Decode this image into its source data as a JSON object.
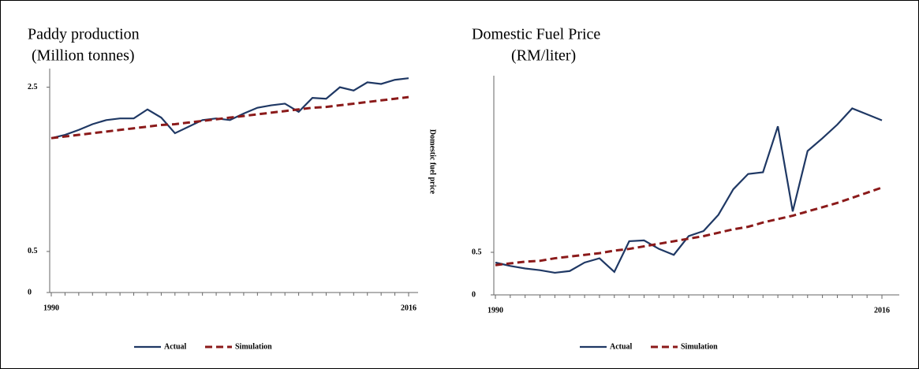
{
  "chart_data": [
    {
      "type": "line",
      "title": "Paddy production",
      "subtitle": "(Million tonnes)",
      "x": [
        1990,
        1991,
        1992,
        1993,
        1994,
        1995,
        1996,
        1997,
        1998,
        1999,
        2000,
        2001,
        2002,
        2003,
        2004,
        2005,
        2006,
        2007,
        2008,
        2009,
        2010,
        2011,
        2012,
        2013,
        2014,
        2015,
        2016
      ],
      "xlim": [
        1990,
        2016
      ],
      "xticks": [
        1990,
        2016
      ],
      "ylim": [
        0,
        2.65
      ],
      "yticks": [
        0,
        0.5,
        2.5
      ],
      "series": [
        {
          "name": "Actual",
          "color": "#1f3864",
          "values": [
            1.88,
            1.92,
            1.98,
            2.05,
            2.1,
            2.12,
            2.12,
            2.23,
            2.13,
            1.94,
            2.02,
            2.1,
            2.12,
            2.1,
            2.18,
            2.25,
            2.28,
            2.3,
            2.2,
            2.37,
            2.36,
            2.5,
            2.46,
            2.56,
            2.54,
            2.59,
            2.61
          ]
        },
        {
          "name": "Simulation",
          "color": "#8b1a1a",
          "dashed": true,
          "values": [
            1.88,
            1.9,
            1.92,
            1.94,
            1.96,
            1.98,
            2.0,
            2.02,
            2.04,
            2.05,
            2.07,
            2.09,
            2.11,
            2.13,
            2.15,
            2.17,
            2.19,
            2.21,
            2.23,
            2.25,
            2.26,
            2.28,
            2.3,
            2.32,
            2.34,
            2.36,
            2.38
          ]
        }
      ]
    },
    {
      "type": "line",
      "title": "Domestic Fuel Price",
      "subtitle": "(RM/liter)",
      "y_label": "Domestic fuel price",
      "x": [
        1990,
        1991,
        1992,
        1993,
        1994,
        1995,
        1996,
        1997,
        1998,
        1999,
        2000,
        2001,
        2002,
        2003,
        2004,
        2005,
        2006,
        2007,
        2008,
        2009,
        2010,
        2011,
        2012,
        2013,
        2014,
        2015,
        2016
      ],
      "xlim": [
        1990,
        2016
      ],
      "xticks": [
        1990,
        2016
      ],
      "ylim": [
        0,
        2.5
      ],
      "yticks": [
        0,
        0.5
      ],
      "series": [
        {
          "name": "Actual",
          "color": "#1f3864",
          "values": [
            0.38,
            0.34,
            0.31,
            0.29,
            0.26,
            0.28,
            0.38,
            0.43,
            0.27,
            0.63,
            0.64,
            0.54,
            0.47,
            0.69,
            0.75,
            0.94,
            1.24,
            1.42,
            1.44,
            1.98,
            0.98,
            1.69,
            1.84,
            2.0,
            2.19,
            2.12,
            2.05
          ]
        },
        {
          "name": "Simulation",
          "color": "#8b1a1a",
          "dashed": true,
          "values": [
            0.35,
            0.37,
            0.39,
            0.4,
            0.43,
            0.45,
            0.47,
            0.49,
            0.52,
            0.54,
            0.57,
            0.6,
            0.63,
            0.66,
            0.69,
            0.73,
            0.77,
            0.8,
            0.85,
            0.89,
            0.93,
            0.98,
            1.03,
            1.08,
            1.14,
            1.2,
            1.26
          ]
        }
      ]
    }
  ]
}
